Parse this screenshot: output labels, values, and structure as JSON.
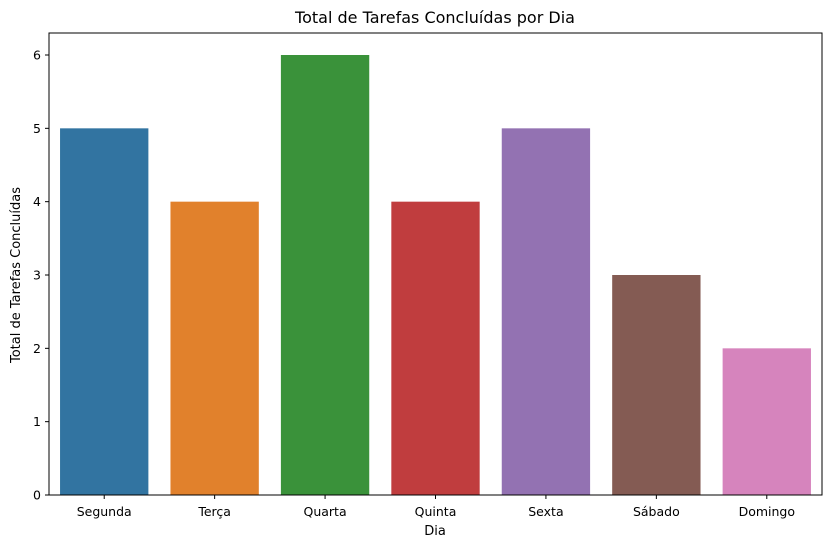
{
  "chart_data": {
    "type": "bar",
    "title": "Total de Tarefas Concluídas por Dia",
    "xlabel": "Dia",
    "ylabel": "Total de Tarefas Concluídas",
    "categories": [
      "Segunda",
      "Terça",
      "Quarta",
      "Quinta",
      "Sexta",
      "Sábado",
      "Domingo"
    ],
    "values": [
      5,
      4,
      6,
      4,
      5,
      3,
      2
    ],
    "colors": [
      "#3274a1",
      "#e1812c",
      "#3a923a",
      "#c03d3e",
      "#9372b2",
      "#845b53",
      "#d684bd"
    ],
    "ylim": [
      0,
      6.3
    ],
    "yticks": [
      "0",
      "1",
      "2",
      "3",
      "4",
      "5",
      "6"
    ],
    "grid": false,
    "legend": "none"
  }
}
